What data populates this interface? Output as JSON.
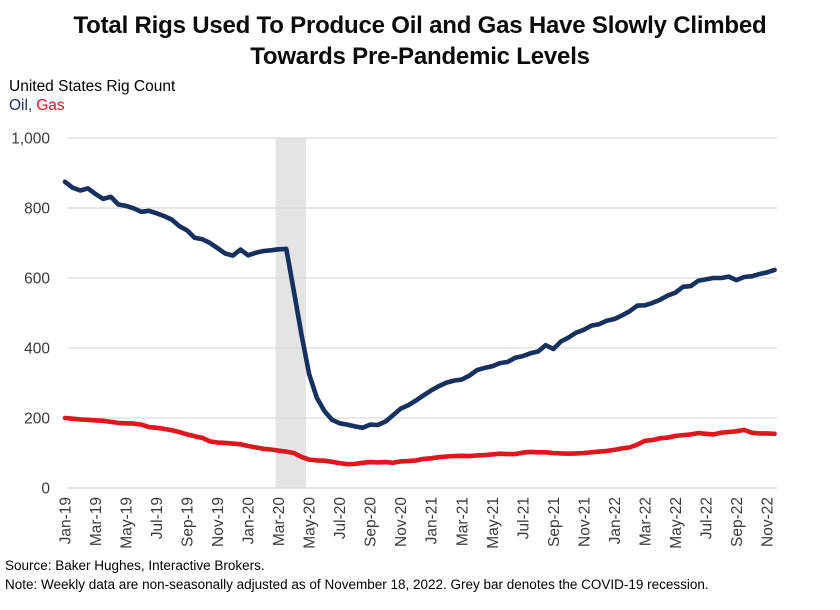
{
  "title": {
    "line1": "Total Rigs Used To Produce Oil and Gas Have Slowly Climbed",
    "line2": "Towards Pre-Pandemic Levels"
  },
  "subtitle": "United States Rig Count",
  "legend": {
    "oil_label": "Oil,",
    "gas_label": "Gas"
  },
  "source_line": "Source: Baker Hughes, Interactive Brokers.",
  "note_line": "Note: Weekly data are non-seasonally adjusted as of November 18, 2022. Grey bar denotes the COVID-19 recession.",
  "colors": {
    "oil": "#16305F",
    "gas": "#E0161C",
    "recession_band": "#E4E4E4",
    "gridline": "#DBDBDB",
    "tick_text": "#3A3A3A",
    "title_text": "#0B0B0B"
  },
  "chart_data": {
    "type": "line",
    "title": "Total Rigs Used To Produce Oil and Gas Have Slowly Climbed Towards Pre-Pandemic Levels",
    "ylabel": "United States Rig Count",
    "ylim": [
      0,
      1000
    ],
    "grid": "horizontal",
    "legend_position": "top-left-inline",
    "x_start_label": "Jan-19",
    "x_end_label": "Nov-22",
    "x_tick_labels": [
      "Jan-19",
      "Mar-19",
      "May-19",
      "Jul-19",
      "Sep-19",
      "Nov-19",
      "Jan-20",
      "Mar-20",
      "May-20",
      "Jul-20",
      "Sep-20",
      "Nov-20",
      "Jan-21",
      "Mar-21",
      "May-21",
      "Jul-21",
      "Sep-21",
      "Nov-21",
      "Jan-22",
      "Mar-22",
      "May-22",
      "Jul-22",
      "Sep-22",
      "Nov-22"
    ],
    "x_tick_month_step": 2,
    "y_ticks": [
      0,
      200,
      400,
      600,
      800,
      1000
    ],
    "y_tick_labels": [
      "0",
      "200",
      "400",
      "600",
      "800",
      "1,000"
    ],
    "sample_interval_months": 0.5,
    "recession_band": {
      "label": "COVID-19 recession",
      "start_month": 13.8,
      "end_month": 15.8
    },
    "series": [
      {
        "name": "Oil",
        "color_key": "oil",
        "values": [
          875,
          858,
          850,
          856,
          840,
          826,
          832,
          810,
          806,
          799,
          789,
          792,
          785,
          777,
          767,
          748,
          736,
          715,
          711,
          700,
          685,
          670,
          664,
          681,
          665,
          672,
          677,
          679,
          682,
          683,
          562,
          438,
          325,
          258,
          220,
          195,
          185,
          181,
          176,
          172,
          181,
          180,
          190,
          208,
          227,
          237,
          250,
          265,
          279,
          291,
          301,
          307,
          310,
          321,
          337,
          343,
          348,
          357,
          360,
          372,
          377,
          385,
          390,
          408,
          397,
          419,
          430,
          444,
          452,
          464,
          468,
          478,
          483,
          493,
          505,
          521,
          522,
          529,
          538,
          550,
          558,
          575,
          577,
          592,
          596,
          600,
          600,
          604,
          594,
          603,
          605,
          611,
          616,
          623
        ]
      },
      {
        "name": "Gas",
        "color_key": "gas",
        "values": [
          200,
          198,
          196,
          195,
          193,
          192,
          189,
          186,
          185,
          184,
          181,
          174,
          172,
          169,
          165,
          160,
          153,
          148,
          143,
          133,
          130,
          129,
          127,
          125,
          120,
          116,
          112,
          110,
          107,
          104,
          100,
          89,
          81,
          79,
          78,
          75,
          71,
          68,
          69,
          72,
          74,
          73,
          74,
          72,
          76,
          77,
          79,
          83,
          85,
          88,
          90,
          91,
          92,
          91,
          93,
          94,
          96,
          98,
          97,
          97,
          101,
          103,
          102,
          102,
          100,
          99,
          98,
          99,
          100,
          102,
          104,
          106,
          109,
          113,
          116,
          124,
          135,
          137,
          142,
          144,
          149,
          151,
          153,
          157,
          155,
          153,
          158,
          160,
          162,
          166,
          158,
          156,
          156,
          155
        ]
      }
    ]
  }
}
